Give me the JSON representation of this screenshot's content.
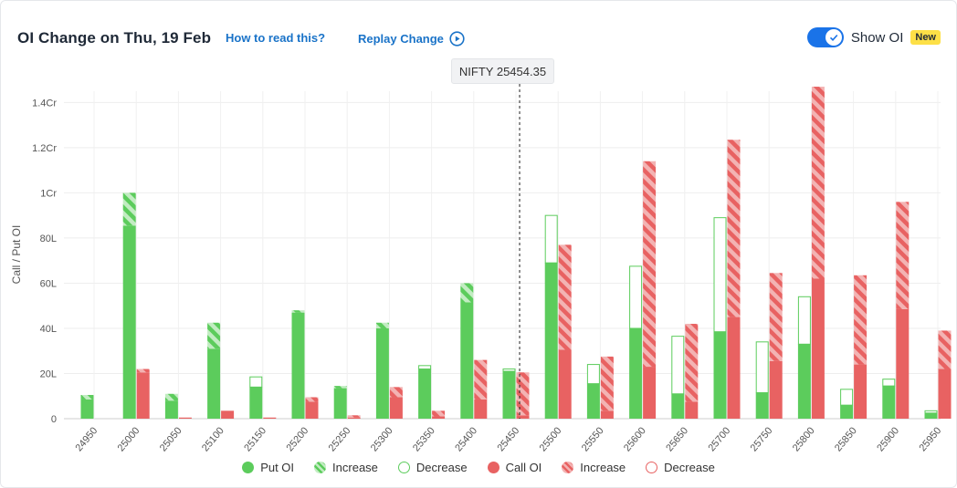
{
  "header": {
    "title": "OI Change on Thu, 19 Feb",
    "how_to_read": "How to read this?",
    "replay_label": "Replay Change",
    "show_oi_label": "Show OI",
    "new_badge": "New"
  },
  "spot_label": "NIFTY 25454.35",
  "colors": {
    "put": "#5ccc5c",
    "put_light": "#a7e3a7",
    "call": "#e86262",
    "call_light": "#f1a3a3",
    "accent": "#1a73c8"
  },
  "legend": [
    {
      "label": "Put OI",
      "kind": "put-solid"
    },
    {
      "label": "Increase",
      "kind": "put-hatch"
    },
    {
      "label": "Decrease",
      "kind": "put-outline"
    },
    {
      "label": "Call OI",
      "kind": "call-solid"
    },
    {
      "label": "Increase",
      "kind": "call-hatch"
    },
    {
      "label": "Decrease",
      "kind": "call-outline"
    }
  ],
  "chart_data": {
    "type": "bar",
    "ylabel": "Call / Put OI",
    "xlabel": "",
    "ylim": [
      0,
      145
    ],
    "yunit_note": "lakhs",
    "y_ticks": [
      {
        "value": 0,
        "label": "0"
      },
      {
        "value": 20,
        "label": "20L"
      },
      {
        "value": 40,
        "label": "40L"
      },
      {
        "value": 60,
        "label": "60L"
      },
      {
        "value": 80,
        "label": "80L"
      },
      {
        "value": 100,
        "label": "1Cr"
      },
      {
        "value": 120,
        "label": "1.2Cr"
      },
      {
        "value": 140,
        "label": "1.4Cr"
      }
    ],
    "spot": 25454.35,
    "strikes": [
      {
        "strike": "25000",
        "put_base": 85.5,
        "put_change": 14.5,
        "call_base": 20.5,
        "call_change": 1.5
      },
      {
        "strike": "24950",
        "put_base": 8.5,
        "put_change": 2,
        "call_base": 0,
        "call_change": 0
      },
      {
        "strike": "25050",
        "put_base": 8,
        "put_change": 3,
        "call_base": 0.5,
        "call_change": 0
      },
      {
        "strike": "25100",
        "put_base": 31,
        "put_change": 11.5,
        "call_base": 3.5,
        "call_change": 0
      },
      {
        "strike": "25150",
        "put_base": 14,
        "put_change": -4.5,
        "call_base": 0.5,
        "call_change": 0
      },
      {
        "strike": "25200",
        "put_base": 47,
        "put_change": 1,
        "call_base": 7.5,
        "call_change": 2
      },
      {
        "strike": "25250",
        "put_base": 13.5,
        "put_change": 1,
        "call_base": 0.5,
        "call_change": 1
      },
      {
        "strike": "25300",
        "put_base": 40,
        "put_change": 2.5,
        "call_base": 9.5,
        "call_change": 4.5
      },
      {
        "strike": "25350",
        "put_base": 22,
        "put_change": -1.5,
        "call_base": 1,
        "call_change": 2.5
      },
      {
        "strike": "25400",
        "put_base": 51.5,
        "put_change": 8.5,
        "call_base": 8.5,
        "call_change": 17.5
      },
      {
        "strike": "25450",
        "put_base": 21,
        "put_change": -1,
        "call_base": 1.5,
        "call_change": 19
      },
      {
        "strike": "25500",
        "put_base": 69,
        "put_change": -21,
        "call_base": 30.5,
        "call_change": 46.5
      },
      {
        "strike": "25550",
        "put_base": 15.5,
        "put_change": -8.5,
        "call_base": 3.5,
        "call_change": 24
      },
      {
        "strike": "25600",
        "put_base": 40,
        "put_change": -27.5,
        "call_base": 23,
        "call_change": 91
      },
      {
        "strike": "25650",
        "put_base": 11,
        "put_change": -25.5,
        "call_base": 7.5,
        "call_change": 34.5
      },
      {
        "strike": "25700",
        "put_base": 38.5,
        "put_change": -50.5,
        "call_base": 45,
        "call_change": 78.5
      },
      {
        "strike": "25750",
        "put_base": 11.5,
        "put_change": -22.5,
        "call_base": 25.5,
        "call_change": 39
      },
      {
        "strike": "25800",
        "put_base": 33,
        "put_change": -21,
        "call_base": 62,
        "call_change": 85
      },
      {
        "strike": "25850",
        "put_base": 6,
        "put_change": -7,
        "call_base": 24,
        "call_change": 39.5
      },
      {
        "strike": "25900",
        "put_base": 14.5,
        "put_change": -3,
        "call_base": 48.5,
        "call_change": 47.5
      },
      {
        "strike": "25950",
        "put_base": 2.5,
        "put_change": -1,
        "call_base": 22,
        "call_change": 17
      }
    ]
  }
}
